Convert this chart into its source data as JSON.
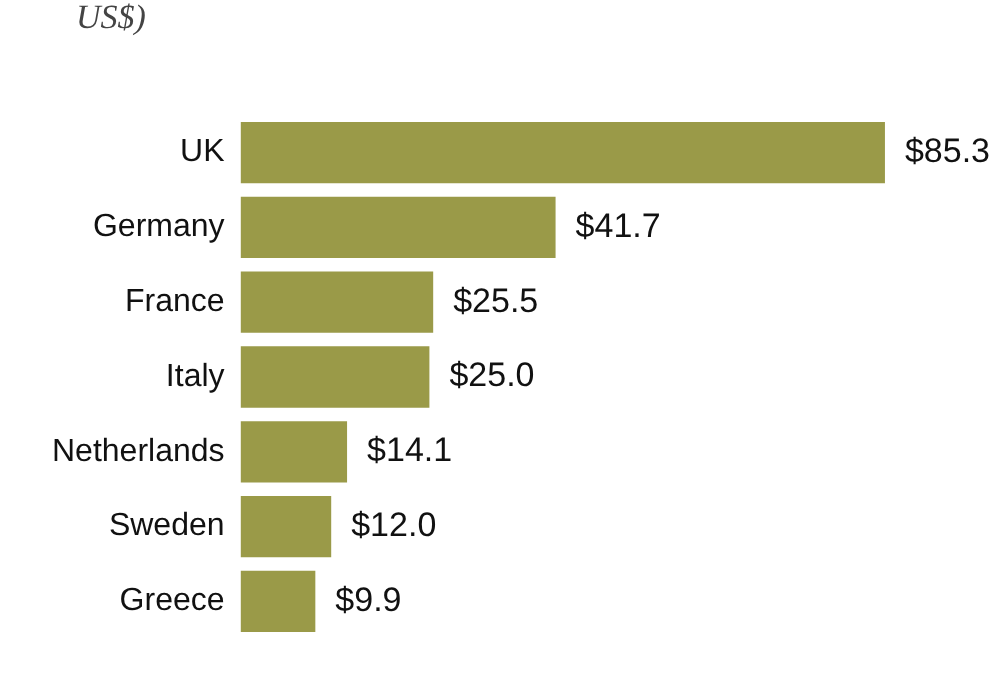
{
  "chart_data": {
    "type": "bar",
    "orientation": "horizontal",
    "title": "US$)",
    "categories": [
      "UK",
      "Germany",
      "France",
      "Italy",
      "Netherlands",
      "Sweden",
      "Greece"
    ],
    "series": [
      {
        "color": "#9a9a48",
        "values": [
          85.3,
          41.7,
          25.5,
          25.0,
          14.1,
          12.0,
          9.9
        ],
        "value_labels": [
          "$85.3",
          "$41.7",
          "$25.5",
          "$25.0",
          "$14.1",
          "$12.0",
          "$9.9"
        ]
      }
    ],
    "legend": false,
    "grid": false
  }
}
